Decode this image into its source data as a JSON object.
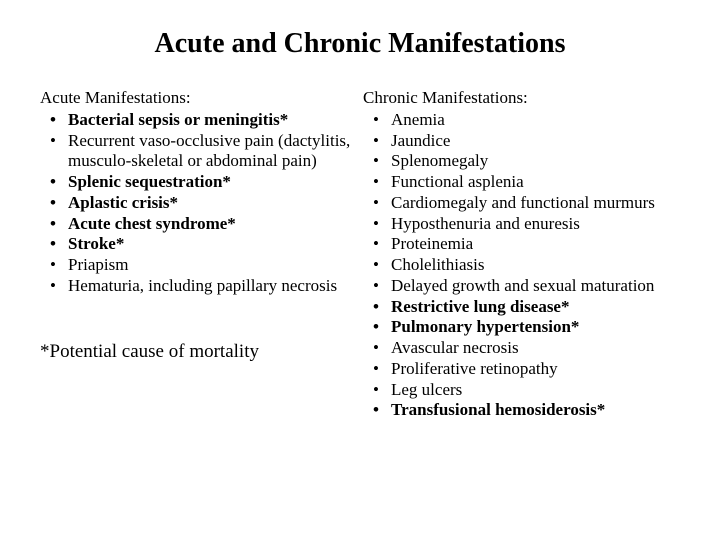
{
  "title": "Acute and Chronic Manifestations",
  "left": {
    "header": "Acute Manifestations:",
    "items": [
      {
        "text": "Bacterial sepsis or meningitis*",
        "bold": true
      },
      {
        "text": "Recurrent vaso-occlusive pain (dactylitis, musculo-skeletal or abdominal pain)",
        "bold": false
      },
      {
        "text": "Splenic sequestration*",
        "bold": true
      },
      {
        "text": "Aplastic crisis*",
        "bold": true
      },
      {
        "text": "Acute chest syndrome*",
        "bold": true
      },
      {
        "text": "Stroke*",
        "bold": true
      },
      {
        "text": "Priapism",
        "bold": false
      },
      {
        "text": "Hematuria, including papillary necrosis",
        "bold": false
      }
    ]
  },
  "right": {
    "header": "Chronic Manifestations:",
    "items": [
      {
        "text": "Anemia",
        "bold": false
      },
      {
        "text": "Jaundice",
        "bold": false
      },
      {
        "text": "Splenomegaly",
        "bold": false
      },
      {
        "text": "Functional asplenia",
        "bold": false
      },
      {
        "text": "Cardiomegaly and functional murmurs",
        "bold": false
      },
      {
        "text": "Hyposthenuria and enuresis",
        "bold": false
      },
      {
        "text": "Proteinemia",
        "bold": false
      },
      {
        "text": "Cholelithiasis",
        "bold": false
      },
      {
        "text": "Delayed growth and sexual maturation",
        "bold": false
      },
      {
        "text": "Restrictive lung disease*",
        "bold": true
      },
      {
        "text": "Pulmonary hypertension*",
        "bold": true
      },
      {
        "text": "Avascular necrosis",
        "bold": false
      },
      {
        "text": "Proliferative retinopathy",
        "bold": false
      },
      {
        "text": "Leg ulcers",
        "bold": false
      },
      {
        "text": "Transfusional hemosiderosis*",
        "bold": true
      }
    ]
  },
  "footer": "*Potential cause of mortality",
  "style": {
    "background_color": "#ffffff",
    "text_color": "#000000",
    "title_fontsize": 28,
    "body_fontsize": 17,
    "footer_fontsize": 19,
    "font_family": "Georgia, serif"
  }
}
